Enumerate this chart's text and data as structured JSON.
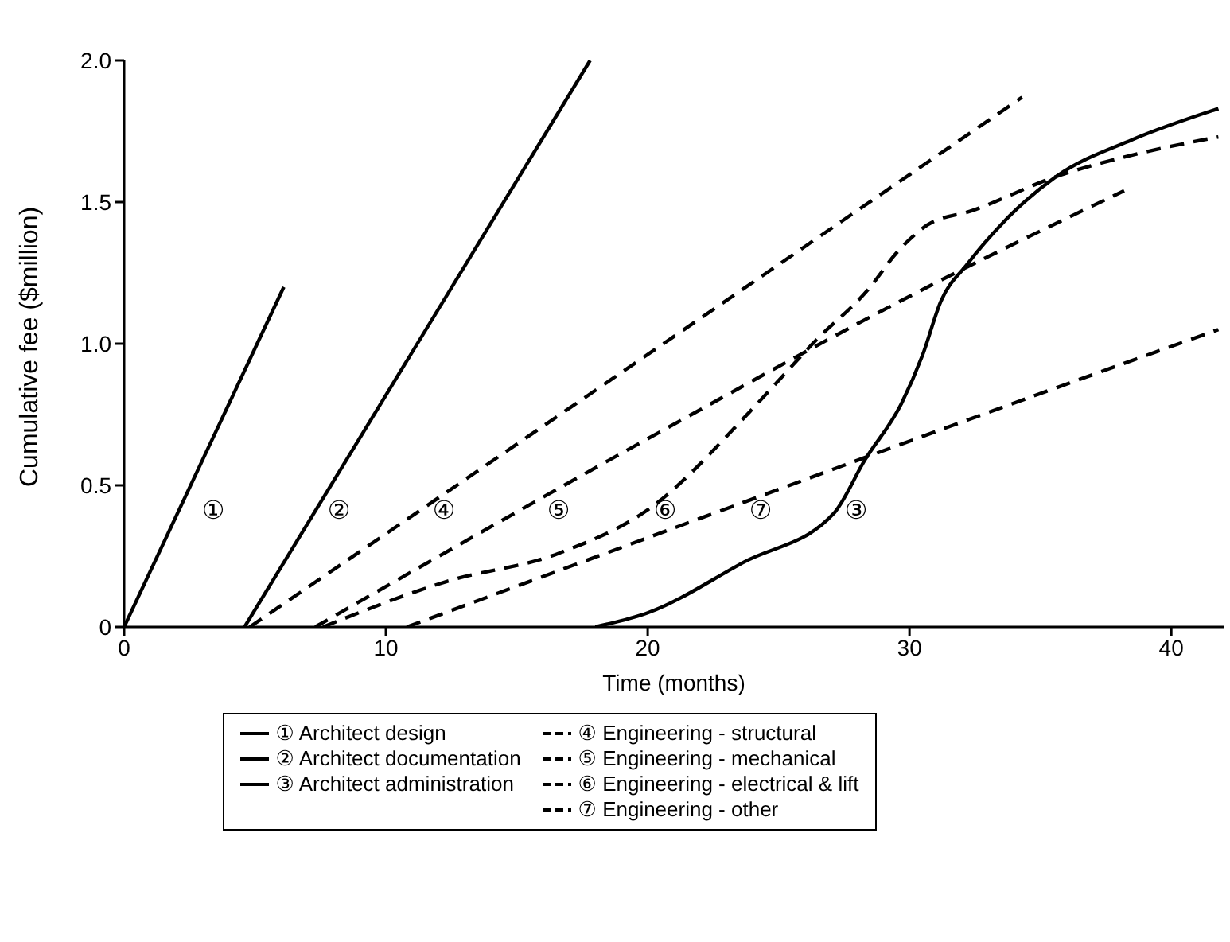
{
  "chart_data": {
    "type": "line",
    "xlabel": "Time (months)",
    "ylabel": "Cumulative fee ($million)",
    "xlim": [
      0,
      42
    ],
    "ylim": [
      0,
      2.0
    ],
    "xticks": [
      0,
      10,
      20,
      30,
      40
    ],
    "yticks": [
      0,
      0.5,
      {
        "value": 1,
        "label": "1.0"
      },
      1.5,
      {
        "value": 2,
        "label": "2.0"
      }
    ],
    "grid": false,
    "legend": "bottom",
    "marker": "none",
    "series": [
      {
        "name": "① Architect design",
        "color": "#000000",
        "line_style": "solid",
        "x": [
          0,
          6.1
        ],
        "values": [
          0,
          1.2
        ]
      },
      {
        "name": "② Architect documentation",
        "color": "#000000",
        "line_style": "solid",
        "x": [
          4.6,
          17.8
        ],
        "values": [
          0,
          2.0
        ]
      },
      {
        "name": "③ Architect administration",
        "color": "#000000",
        "line_style": "solid",
        "x": [
          18,
          20,
          23.7,
          27.1,
          28.3,
          29.7,
          30.5,
          31.2,
          32.2,
          33.6,
          35.6,
          38.5,
          41.8
        ],
        "values": [
          0,
          0.05,
          0.23,
          0.4,
          0.59,
          0.79,
          0.96,
          1.15,
          1.28,
          1.43,
          1.59,
          1.72,
          1.83
        ]
      },
      {
        "name": "④ Engineering - structural",
        "color": "#000000",
        "line_style": "dashed",
        "x": [
          4.8,
          20.6,
          34.3
        ],
        "values": [
          0,
          1.0,
          1.87
        ]
      },
      {
        "name": "⑤ Engineering - mechanical",
        "color": "#000000",
        "line_style": "dashed",
        "x": [
          7.3,
          20.5,
          30.9,
          38.2
        ],
        "values": [
          0,
          0.69,
          1.21,
          1.54
        ]
      },
      {
        "name": "⑥ Engineering - electrical & lift",
        "color": "#000000",
        "line_style": "dashed",
        "x": [
          7.6,
          12.3,
          16.6,
          20.1,
          23.9,
          25.1,
          26.3,
          28.5,
          29.5,
          30.7,
          32.4,
          35.6,
          38.7,
          41.8
        ],
        "values": [
          0,
          0.16,
          0.26,
          0.42,
          0.76,
          0.88,
          1.0,
          1.2,
          1.32,
          1.42,
          1.47,
          1.59,
          1.67,
          1.73
        ]
      },
      {
        "name": "⑦ Engineering - other",
        "color": "#000000",
        "line_style": "dashed",
        "x": [
          10.8,
          22.2,
          31.6,
          41.8
        ],
        "values": [
          0,
          0.39,
          0.71,
          1.05
        ]
      }
    ],
    "annotations": [
      "①",
      "②",
      "④",
      "⑤",
      "⑥",
      "⑦",
      "③"
    ]
  }
}
